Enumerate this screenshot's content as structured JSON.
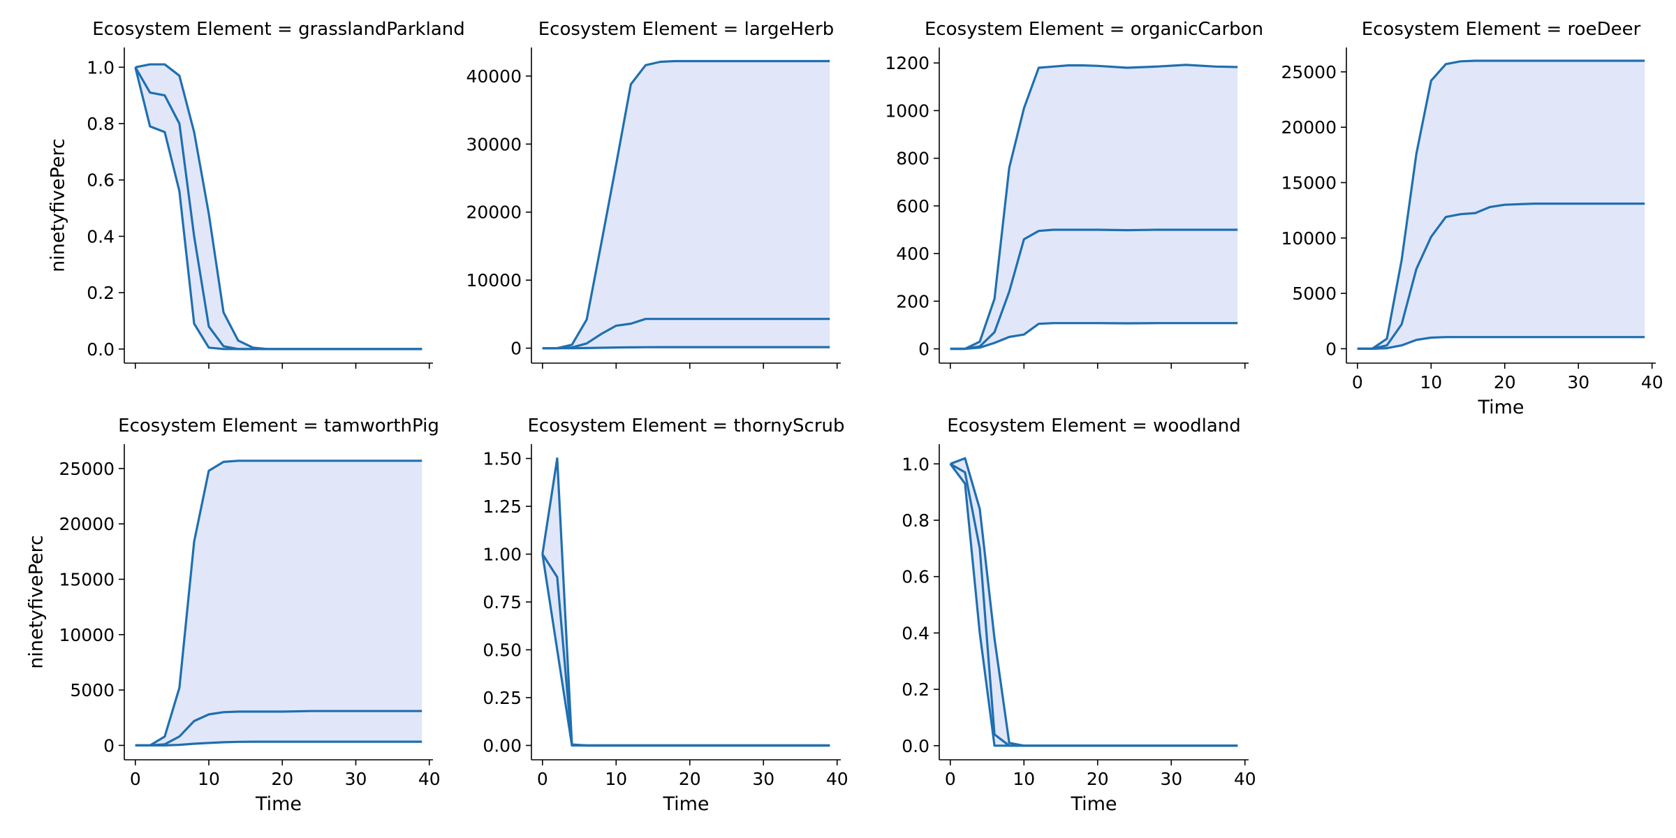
{
  "figure": {
    "facet_label": "Ecosystem Element",
    "x_label": "Time",
    "y_label": "ninetyfivePerc",
    "line_color": "#1f6fb0",
    "band_color": "#c8d4f4"
  },
  "chart_data": [
    {
      "type": "line",
      "title": "Ecosystem Element = grasslandParkland",
      "xlabel": "",
      "ylabel": "ninetyfivePerc",
      "xlim": [
        -1.5,
        40.5
      ],
      "ylim": [
        -0.05,
        1.07
      ],
      "x_ticks": [
        0,
        10,
        20,
        30,
        40
      ],
      "show_x_tick_labels": false,
      "y_ticks": [
        0.0,
        0.2,
        0.4,
        0.6,
        0.8,
        1.0
      ],
      "y_tick_labels": [
        "0.0",
        "0.2",
        "0.4",
        "0.6",
        "0.8",
        "1.0"
      ],
      "x": [
        0,
        2,
        4,
        6,
        8,
        10,
        12,
        14,
        16,
        18,
        20,
        24,
        28,
        32,
        36,
        39
      ],
      "series": [
        {
          "role": "upper",
          "values": [
            1.0,
            1.01,
            1.01,
            0.97,
            0.77,
            0.48,
            0.13,
            0.03,
            0.005,
            0.0,
            0.0,
            0.0,
            0.0,
            0.0,
            0.0,
            0.0
          ]
        },
        {
          "role": "median",
          "values": [
            1.0,
            0.91,
            0.9,
            0.8,
            0.4,
            0.08,
            0.01,
            0.0,
            0.0,
            0.0,
            0.0,
            0.0,
            0.0,
            0.0,
            0.0,
            0.0
          ]
        },
        {
          "role": "lower",
          "values": [
            1.0,
            0.79,
            0.77,
            0.56,
            0.09,
            0.005,
            0.0,
            0.0,
            0.0,
            0.0,
            0.0,
            0.0,
            0.0,
            0.0,
            0.0,
            0.0
          ]
        }
      ]
    },
    {
      "type": "line",
      "title": "Ecosystem Element = largeHerb",
      "xlabel": "",
      "ylabel": "",
      "xlim": [
        -1.5,
        40.5
      ],
      "ylim": [
        -2200,
        44200
      ],
      "x_ticks": [
        0,
        10,
        20,
        30,
        40
      ],
      "show_x_tick_labels": false,
      "y_ticks": [
        0,
        10000,
        20000,
        30000,
        40000
      ],
      "y_tick_labels": [
        "0",
        "10000",
        "20000",
        "30000",
        "40000"
      ],
      "x": [
        0,
        2,
        4,
        6,
        8,
        10,
        12,
        14,
        16,
        18,
        20,
        24,
        28,
        32,
        36,
        39
      ],
      "series": [
        {
          "role": "upper",
          "values": [
            0,
            0,
            500,
            4200,
            15500,
            27000,
            38800,
            41600,
            42100,
            42200,
            42200,
            42200,
            42200,
            42200,
            42200,
            42200
          ]
        },
        {
          "role": "median",
          "values": [
            0,
            0,
            100,
            700,
            2100,
            3300,
            3600,
            4300,
            4300,
            4300,
            4300,
            4300,
            4300,
            4300,
            4300,
            4300
          ]
        },
        {
          "role": "lower",
          "values": [
            0,
            0,
            0,
            20,
            60,
            100,
            120,
            140,
            150,
            150,
            150,
            150,
            150,
            150,
            150,
            150
          ]
        }
      ]
    },
    {
      "type": "line",
      "title": "Ecosystem Element = organicCarbon",
      "xlabel": "",
      "ylabel": "",
      "xlim": [
        -1.5,
        40.5
      ],
      "ylim": [
        -60,
        1265
      ],
      "x_ticks": [
        0,
        10,
        20,
        30,
        40
      ],
      "show_x_tick_labels": false,
      "y_ticks": [
        0,
        200,
        400,
        600,
        800,
        1000,
        1200
      ],
      "y_tick_labels": [
        "0",
        "200",
        "400",
        "600",
        "800",
        "1000",
        "1200"
      ],
      "x": [
        0,
        2,
        4,
        6,
        8,
        10,
        12,
        14,
        16,
        18,
        20,
        24,
        28,
        32,
        36,
        39
      ],
      "series": [
        {
          "role": "upper",
          "values": [
            0,
            0,
            30,
            210,
            760,
            1010,
            1180,
            1185,
            1190,
            1190,
            1188,
            1180,
            1185,
            1192,
            1185,
            1183
          ]
        },
        {
          "role": "median",
          "values": [
            0,
            0,
            10,
            70,
            240,
            460,
            495,
            500,
            500,
            500,
            500,
            498,
            500,
            500,
            500,
            500
          ]
        },
        {
          "role": "lower",
          "values": [
            0,
            0,
            5,
            25,
            50,
            60,
            105,
            108,
            108,
            108,
            108,
            107,
            108,
            108,
            108,
            108
          ]
        }
      ]
    },
    {
      "type": "line",
      "title": "Ecosystem Element = roeDeer",
      "xlabel": "Time",
      "ylabel": "",
      "xlim": [
        -1.5,
        40.5
      ],
      "ylim": [
        -1300,
        27200
      ],
      "x_ticks": [
        0,
        10,
        20,
        30,
        40
      ],
      "x_tick_labels": [
        "0",
        "10",
        "20",
        "30",
        "40"
      ],
      "show_x_tick_labels": true,
      "y_ticks": [
        0,
        5000,
        10000,
        15000,
        20000,
        25000
      ],
      "y_tick_labels": [
        "0",
        "5000",
        "10000",
        "15000",
        "20000",
        "25000"
      ],
      "x": [
        0,
        2,
        4,
        6,
        8,
        10,
        12,
        14,
        16,
        18,
        20,
        22,
        24,
        28,
        32,
        36,
        39
      ],
      "series": [
        {
          "role": "upper",
          "values": [
            0,
            0,
            900,
            8000,
            17600,
            24200,
            25700,
            25950,
            26000,
            26000,
            26000,
            26000,
            26000,
            26000,
            26000,
            26000,
            26000
          ]
        },
        {
          "role": "median",
          "values": [
            0,
            0,
            300,
            2200,
            7200,
            10100,
            11900,
            12150,
            12250,
            12800,
            13000,
            13050,
            13100,
            13100,
            13100,
            13100,
            13100
          ]
        },
        {
          "role": "lower",
          "values": [
            0,
            0,
            50,
            300,
            800,
            1000,
            1050,
            1050,
            1050,
            1050,
            1050,
            1050,
            1050,
            1050,
            1050,
            1050,
            1050
          ]
        }
      ]
    },
    {
      "type": "line",
      "title": "Ecosystem Element = tamworthPig",
      "xlabel": "Time",
      "ylabel": "ninetyfivePerc",
      "xlim": [
        -1.5,
        40.5
      ],
      "ylim": [
        -1300,
        27200
      ],
      "x_ticks": [
        0,
        10,
        20,
        30,
        40
      ],
      "x_tick_labels": [
        "0",
        "10",
        "20",
        "30",
        "40"
      ],
      "show_x_tick_labels": true,
      "y_ticks": [
        0,
        5000,
        10000,
        15000,
        20000,
        25000
      ],
      "y_tick_labels": [
        "0",
        "5000",
        "10000",
        "15000",
        "20000",
        "25000"
      ],
      "x": [
        0,
        2,
        4,
        6,
        8,
        10,
        12,
        14,
        16,
        18,
        20,
        24,
        28,
        32,
        36,
        39
      ],
      "series": [
        {
          "role": "upper",
          "values": [
            0,
            0,
            800,
            5200,
            18400,
            24800,
            25600,
            25700,
            25700,
            25700,
            25700,
            25700,
            25700,
            25700,
            25700,
            25700
          ]
        },
        {
          "role": "median",
          "values": [
            0,
            0,
            100,
            800,
            2200,
            2800,
            3000,
            3050,
            3050,
            3050,
            3050,
            3100,
            3100,
            3100,
            3100,
            3100
          ]
        },
        {
          "role": "lower",
          "values": [
            0,
            0,
            0,
            50,
            150,
            220,
            280,
            320,
            330,
            330,
            330,
            330,
            330,
            330,
            330,
            330
          ]
        }
      ]
    },
    {
      "type": "line",
      "title": "Ecosystem Element = thornyScrub",
      "xlabel": "Time",
      "ylabel": "",
      "xlim": [
        -1.5,
        40.5
      ],
      "ylim": [
        -0.075,
        1.575
      ],
      "x_ticks": [
        0,
        10,
        20,
        30,
        40
      ],
      "x_tick_labels": [
        "0",
        "10",
        "20",
        "30",
        "40"
      ],
      "show_x_tick_labels": true,
      "y_ticks": [
        0.0,
        0.25,
        0.5,
        0.75,
        1.0,
        1.25,
        1.5
      ],
      "y_tick_labels": [
        "0.00",
        "0.25",
        "0.50",
        "0.75",
        "1.00",
        "1.25",
        "1.50"
      ],
      "x": [
        0,
        2,
        4,
        6,
        8,
        10,
        15,
        20,
        25,
        30,
        35,
        39
      ],
      "series": [
        {
          "role": "upper",
          "values": [
            1.0,
            1.5,
            0.005,
            0.0,
            0.0,
            0.0,
            0.0,
            0.0,
            0.0,
            0.0,
            0.0,
            0.0
          ]
        },
        {
          "role": "median",
          "values": [
            1.0,
            0.88,
            0.003,
            0.0,
            0.0,
            0.0,
            0.0,
            0.0,
            0.0,
            0.0,
            0.0,
            0.0
          ]
        },
        {
          "role": "lower",
          "values": [
            1.0,
            0.5,
            0.0,
            0.0,
            0.0,
            0.0,
            0.0,
            0.0,
            0.0,
            0.0,
            0.0,
            0.0
          ]
        }
      ]
    },
    {
      "type": "line",
      "title": "Ecosystem Element = woodland",
      "xlabel": "Time",
      "ylabel": "",
      "xlim": [
        -1.5,
        40.5
      ],
      "ylim": [
        -0.05,
        1.07
      ],
      "x_ticks": [
        0,
        10,
        20,
        30,
        40
      ],
      "x_tick_labels": [
        "0",
        "10",
        "20",
        "30",
        "40"
      ],
      "show_x_tick_labels": true,
      "y_ticks": [
        0.0,
        0.2,
        0.4,
        0.6,
        0.8,
        1.0
      ],
      "y_tick_labels": [
        "0.0",
        "0.2",
        "0.4",
        "0.6",
        "0.8",
        "1.0"
      ],
      "x": [
        0,
        2,
        4,
        6,
        8,
        10,
        15,
        20,
        25,
        30,
        35,
        39
      ],
      "series": [
        {
          "role": "upper",
          "values": [
            1.0,
            1.02,
            0.84,
            0.38,
            0.01,
            0.0,
            0.0,
            0.0,
            0.0,
            0.0,
            0.0,
            0.0
          ]
        },
        {
          "role": "median",
          "values": [
            1.0,
            0.97,
            0.7,
            0.04,
            0.0,
            0.0,
            0.0,
            0.0,
            0.0,
            0.0,
            0.0,
            0.0
          ]
        },
        {
          "role": "lower",
          "values": [
            1.0,
            0.93,
            0.4,
            0.0,
            0.0,
            0.0,
            0.0,
            0.0,
            0.0,
            0.0,
            0.0,
            0.0
          ]
        }
      ]
    }
  ]
}
